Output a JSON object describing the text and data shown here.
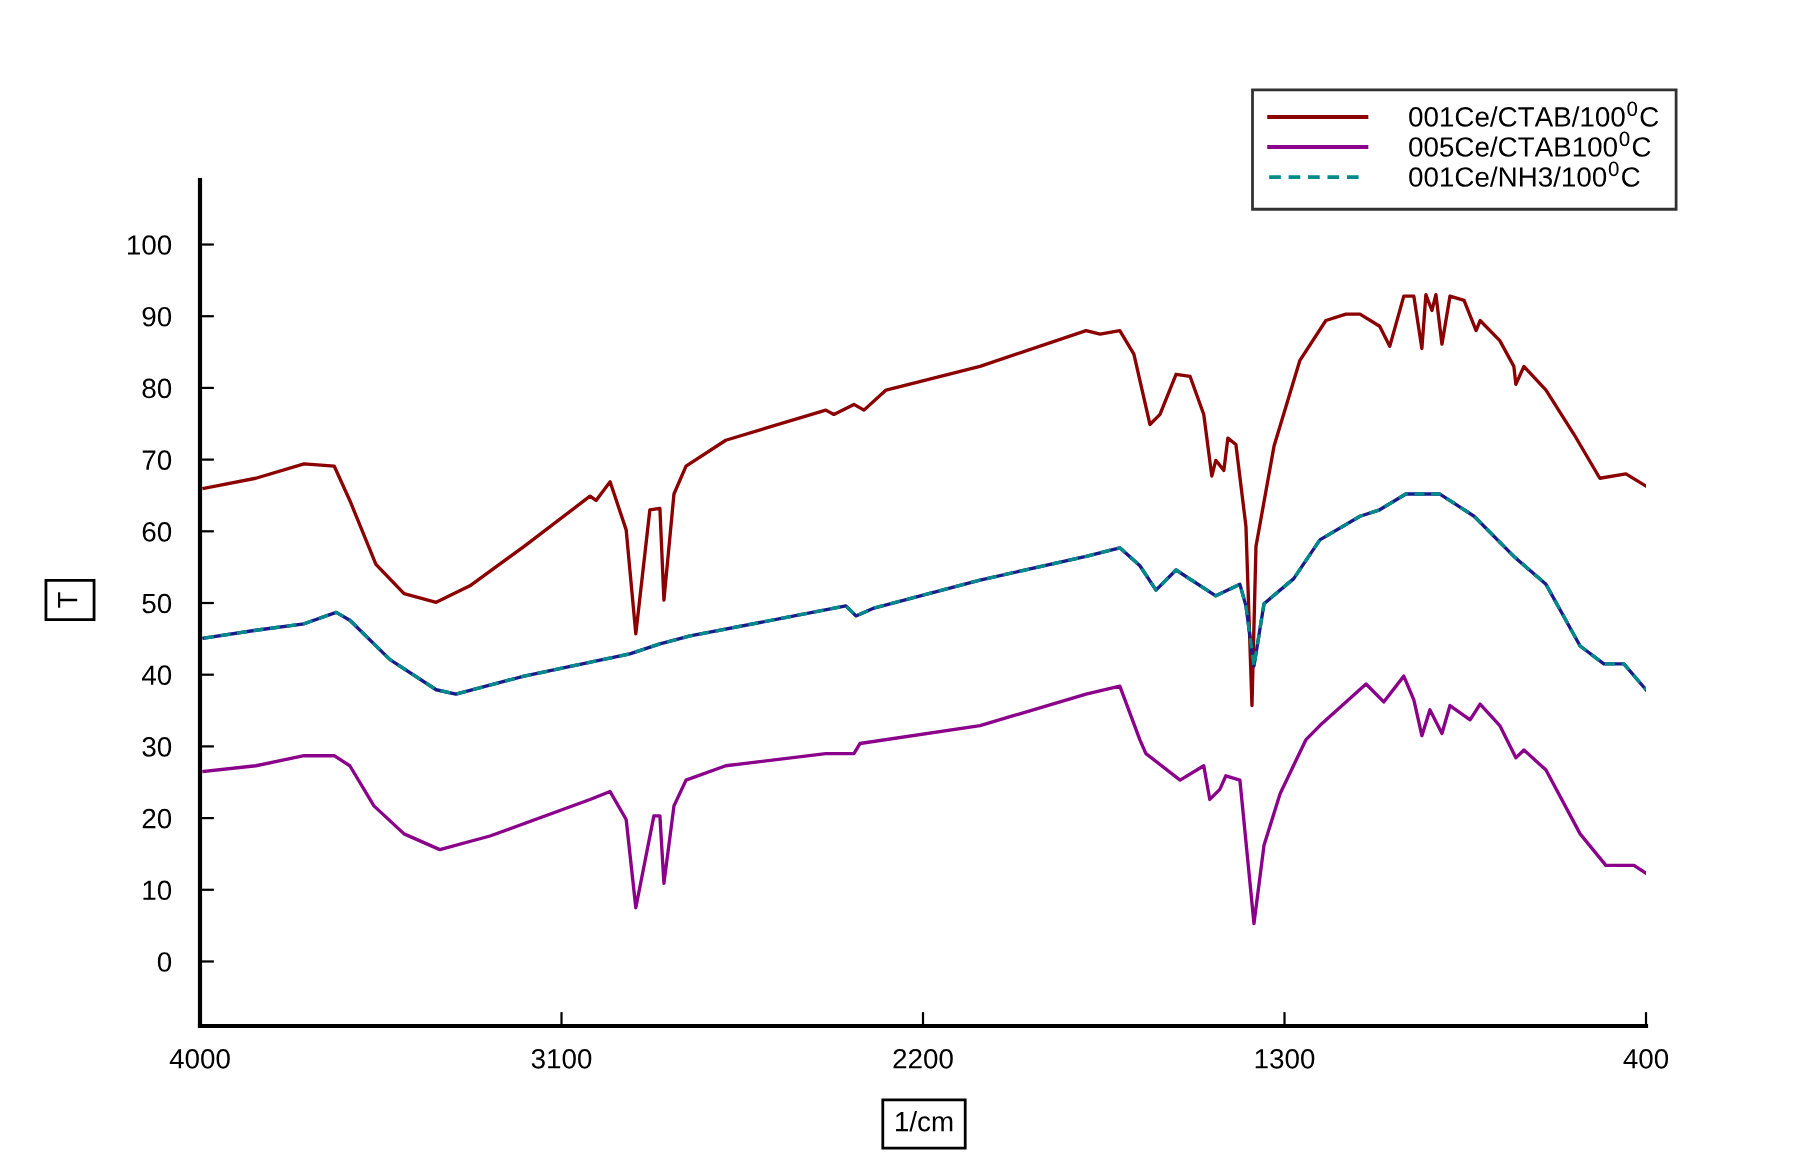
{
  "chart_data": {
    "type": "line",
    "xlabel": "1/cm",
    "ylabel": "T",
    "xlim": [
      4000,
      400
    ],
    "xticks": [
      4000,
      3100,
      2200,
      1300,
      400
    ],
    "ylim": [
      -9,
      109
    ],
    "yticks": [
      0,
      10,
      20,
      30,
      40,
      50,
      60,
      70,
      80,
      90,
      100
    ],
    "grid": false,
    "legend": "top right",
    "marker": "none",
    "series": [
      {
        "name": "001Ce/CTAB/100$^{0}$C",
        "color": "#8b0000",
        "line_style": "solid",
        "x": [
          3990,
          3861,
          3741,
          3666,
          3627,
          3562,
          3492,
          3412,
          3328,
          3193,
          3029,
          3014,
          2979,
          2939,
          2915,
          2880,
          2855,
          2845,
          2820,
          2790,
          2691,
          2442,
          2422,
          2372,
          2347,
          2292,
          2058,
          1794,
          1759,
          1710,
          1675,
          1635,
          1610,
          1570,
          1535,
          1501,
          1481,
          1471,
          1451,
          1441,
          1421,
          1396,
          1381,
          1371,
          1326,
          1262,
          1197,
          1147,
          1112,
          1063,
          1038,
          1003,
          978,
          958,
          948,
          933,
          923,
          908,
          888,
          853,
          823,
          813,
          764,
          729,
          724,
          704,
          649,
          579,
          515,
          450,
          400
        ],
        "values": [
          66.0,
          67.4,
          69.4,
          69.1,
          64.3,
          55.4,
          51.3,
          50.1,
          52.4,
          57.9,
          64.9,
          64.3,
          66.9,
          60.2,
          45.7,
          63.0,
          63.2,
          50.4,
          65.2,
          69.1,
          72.7,
          76.9,
          76.3,
          77.7,
          76.9,
          79.7,
          83.0,
          88.0,
          87.5,
          88.0,
          84.7,
          74.9,
          76.3,
          81.9,
          81.6,
          76.3,
          67.7,
          69.9,
          68.5,
          73.0,
          72.1,
          60.7,
          35.7,
          57.9,
          71.9,
          83.8,
          89.4,
          90.3,
          90.3,
          88.6,
          85.8,
          92.8,
          92.8,
          85.5,
          93.0,
          90.8,
          93.0,
          86.1,
          92.8,
          92.2,
          88.0,
          89.4,
          86.6,
          83.0,
          80.5,
          83.0,
          79.7,
          73.5,
          67.4,
          68.0,
          66.3
        ]
      },
      {
        "name": "005Ce/CTAB100$^{0}$C",
        "color": "#8b008b",
        "line_style": "solid",
        "x": [
          3990,
          3861,
          3741,
          3666,
          3627,
          3567,
          3492,
          3403,
          3278,
          3029,
          2979,
          2939,
          2915,
          2870,
          2855,
          2845,
          2820,
          2790,
          2691,
          2442,
          2372,
          2357,
          2058,
          1794,
          1710,
          1660,
          1645,
          1560,
          1501,
          1486,
          1461,
          1446,
          1411,
          1376,
          1351,
          1311,
          1247,
          1212,
          1097,
          1053,
          1003,
          978,
          958,
          938,
          908,
          888,
          838,
          813,
          764,
          724,
          704,
          649,
          564,
          500,
          430,
          400
        ],
        "values": [
          26.5,
          27.3,
          28.7,
          28.7,
          27.3,
          21.7,
          17.8,
          15.6,
          17.5,
          22.6,
          23.7,
          19.8,
          7.5,
          20.3,
          20.3,
          10.9,
          21.7,
          25.3,
          27.3,
          29.0,
          29.0,
          30.4,
          32.9,
          37.3,
          38.4,
          30.9,
          29.0,
          25.3,
          27.3,
          22.6,
          24.0,
          25.9,
          25.3,
          5.3,
          16.2,
          23.4,
          30.9,
          32.9,
          38.7,
          36.2,
          39.8,
          36.5,
          31.5,
          35.1,
          31.8,
          35.7,
          33.7,
          35.9,
          32.9,
          28.4,
          29.5,
          26.7,
          17.8,
          13.4,
          13.4,
          12.3
        ]
      },
      {
        "color": "#1a1a8c",
        "line_style": "solid",
        "x": [
          3990,
          3861,
          3741,
          3661,
          3627,
          3527,
          3412,
          3363,
          3193,
          2930,
          2855,
          2780,
          2392,
          2367,
          2322,
          2058,
          1794,
          1710,
          1660,
          1620,
          1570,
          1471,
          1411,
          1396,
          1376,
          1351,
          1277,
          1212,
          1112,
          1063,
          998,
          913,
          828,
          729,
          649,
          564,
          505,
          455,
          400
        ],
        "values": [
          45.1,
          46.2,
          47.1,
          48.7,
          47.6,
          42.1,
          37.9,
          37.3,
          39.8,
          42.9,
          44.3,
          45.4,
          49.6,
          48.2,
          49.3,
          53.2,
          56.5,
          57.7,
          55.2,
          51.8,
          54.6,
          51.0,
          52.6,
          49.6,
          41.2,
          49.9,
          53.4,
          58.8,
          62.1,
          63.0,
          65.2,
          65.2,
          62.1,
          56.5,
          52.6,
          44.0,
          41.5,
          41.5,
          37.9
        ]
      },
      {
        "name": "001Ce/NH3/100$^{0}$C",
        "color": "#008b8b",
        "line_style": "dashed",
        "x": [
          3990,
          3861,
          3741,
          3661,
          3627,
          3527,
          3412,
          3363,
          3193,
          2930,
          2855,
          2780,
          2392,
          2367,
          2322,
          2058,
          1794,
          1710,
          1660,
          1620,
          1570,
          1471,
          1411,
          1396,
          1376,
          1351,
          1277,
          1212,
          1112,
          1063,
          998,
          913,
          828,
          729,
          649,
          564,
          505,
          455,
          400
        ],
        "values": [
          45.1,
          46.2,
          47.1,
          48.7,
          47.6,
          42.1,
          37.9,
          37.3,
          39.8,
          42.9,
          44.3,
          45.4,
          49.6,
          48.2,
          49.3,
          53.2,
          56.5,
          57.7,
          55.2,
          51.8,
          54.6,
          51.0,
          52.6,
          49.6,
          41.2,
          49.9,
          53.4,
          58.8,
          62.1,
          63.0,
          65.2,
          65.2,
          62.1,
          56.5,
          52.6,
          44.0,
          41.5,
          41.5,
          37.9
        ]
      }
    ]
  }
}
